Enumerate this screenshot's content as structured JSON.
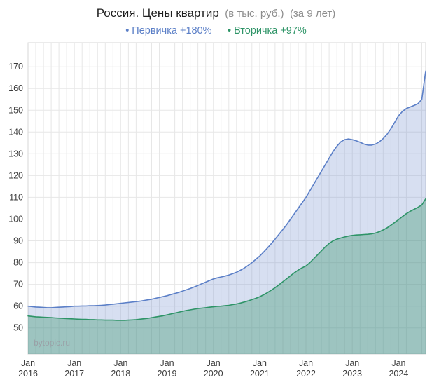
{
  "title": {
    "main": "Россия. Цены квартир",
    "sub1": "(в тыс. руб.)",
    "sub2": "(за 9 лет)"
  },
  "legend": [
    {
      "label": "• Первичка +180%",
      "color": "#5b7fc7"
    },
    {
      "label": "• Вторичка +97%",
      "color": "#2e9467"
    }
  ],
  "watermark": "bytopic.ru",
  "chart_data": {
    "type": "area",
    "title": "Россия. Цены квартир (в тыс. руб.) (за 9 лет)",
    "xlabel": "",
    "ylabel": "",
    "x_start": "Jan 2016",
    "x_end": "Aug 2024",
    "points_per_month": 1,
    "xtick_month_label": "Jan",
    "xtick_years": [
      "2016",
      "2017",
      "2018",
      "2019",
      "2020",
      "2021",
      "2022",
      "2023",
      "2024"
    ],
    "ylim": [
      38,
      181
    ],
    "yticks": [
      50,
      60,
      70,
      80,
      90,
      100,
      110,
      120,
      130,
      140,
      150,
      160,
      170
    ],
    "grid": true,
    "legend_position": "top",
    "series": [
      {
        "name": "Первичка",
        "change": "+180%",
        "color": "#5b7fc7",
        "fill": "rgba(110,140,205,0.28)",
        "values": [
          60.0,
          59.8,
          59.6,
          59.5,
          59.4,
          59.3,
          59.3,
          59.4,
          59.5,
          59.6,
          59.7,
          59.8,
          60.0,
          60.0,
          60.1,
          60.1,
          60.2,
          60.2,
          60.3,
          60.4,
          60.5,
          60.7,
          60.9,
          61.1,
          61.3,
          61.5,
          61.7,
          61.9,
          62.1,
          62.3,
          62.6,
          62.9,
          63.2,
          63.6,
          64.0,
          64.4,
          64.8,
          65.3,
          65.8,
          66.3,
          66.9,
          67.5,
          68.1,
          68.8,
          69.5,
          70.3,
          71.0,
          71.8,
          72.5,
          73.0,
          73.4,
          73.8,
          74.3,
          74.9,
          75.6,
          76.5,
          77.5,
          78.7,
          80.0,
          81.5,
          83.0,
          84.8,
          86.7,
          88.7,
          90.8,
          93.0,
          95.2,
          97.5,
          100.0,
          102.5,
          105.0,
          107.5,
          110.0,
          113.0,
          116.0,
          119.0,
          122.0,
          125.0,
          128.0,
          131.0,
          133.5,
          135.5,
          136.5,
          136.8,
          136.5,
          136.0,
          135.3,
          134.5,
          134.0,
          134.0,
          134.5,
          135.5,
          137.0,
          139.0,
          141.5,
          144.5,
          147.5,
          149.5,
          150.8,
          151.5,
          152.2,
          153.0,
          155.0,
          168.0
        ]
      },
      {
        "name": "Вторичка",
        "change": "+97%",
        "color": "#2e9467",
        "fill": "rgba(64,152,112,0.38)",
        "values": [
          55.5,
          55.3,
          55.1,
          55.0,
          54.9,
          54.8,
          54.7,
          54.6,
          54.5,
          54.4,
          54.3,
          54.2,
          54.1,
          54.0,
          53.9,
          53.9,
          53.8,
          53.8,
          53.7,
          53.7,
          53.6,
          53.6,
          53.6,
          53.5,
          53.5,
          53.5,
          53.6,
          53.7,
          53.8,
          54.0,
          54.2,
          54.4,
          54.7,
          55.0,
          55.3,
          55.6,
          56.0,
          56.4,
          56.8,
          57.2,
          57.6,
          58.0,
          58.3,
          58.6,
          58.9,
          59.1,
          59.3,
          59.5,
          59.7,
          59.9,
          60.0,
          60.2,
          60.4,
          60.7,
          61.0,
          61.4,
          61.9,
          62.4,
          63.0,
          63.6,
          64.3,
          65.2,
          66.2,
          67.3,
          68.5,
          69.8,
          71.2,
          72.6,
          74.0,
          75.4,
          76.6,
          77.6,
          78.5,
          80.0,
          81.8,
          83.6,
          85.4,
          87.2,
          88.8,
          90.0,
          90.8,
          91.3,
          91.8,
          92.2,
          92.5,
          92.7,
          92.8,
          92.9,
          93.0,
          93.2,
          93.6,
          94.2,
          95.0,
          96.0,
          97.2,
          98.5,
          99.8,
          101.2,
          102.5,
          103.6,
          104.5,
          105.4,
          106.5,
          109.3
        ]
      }
    ]
  }
}
